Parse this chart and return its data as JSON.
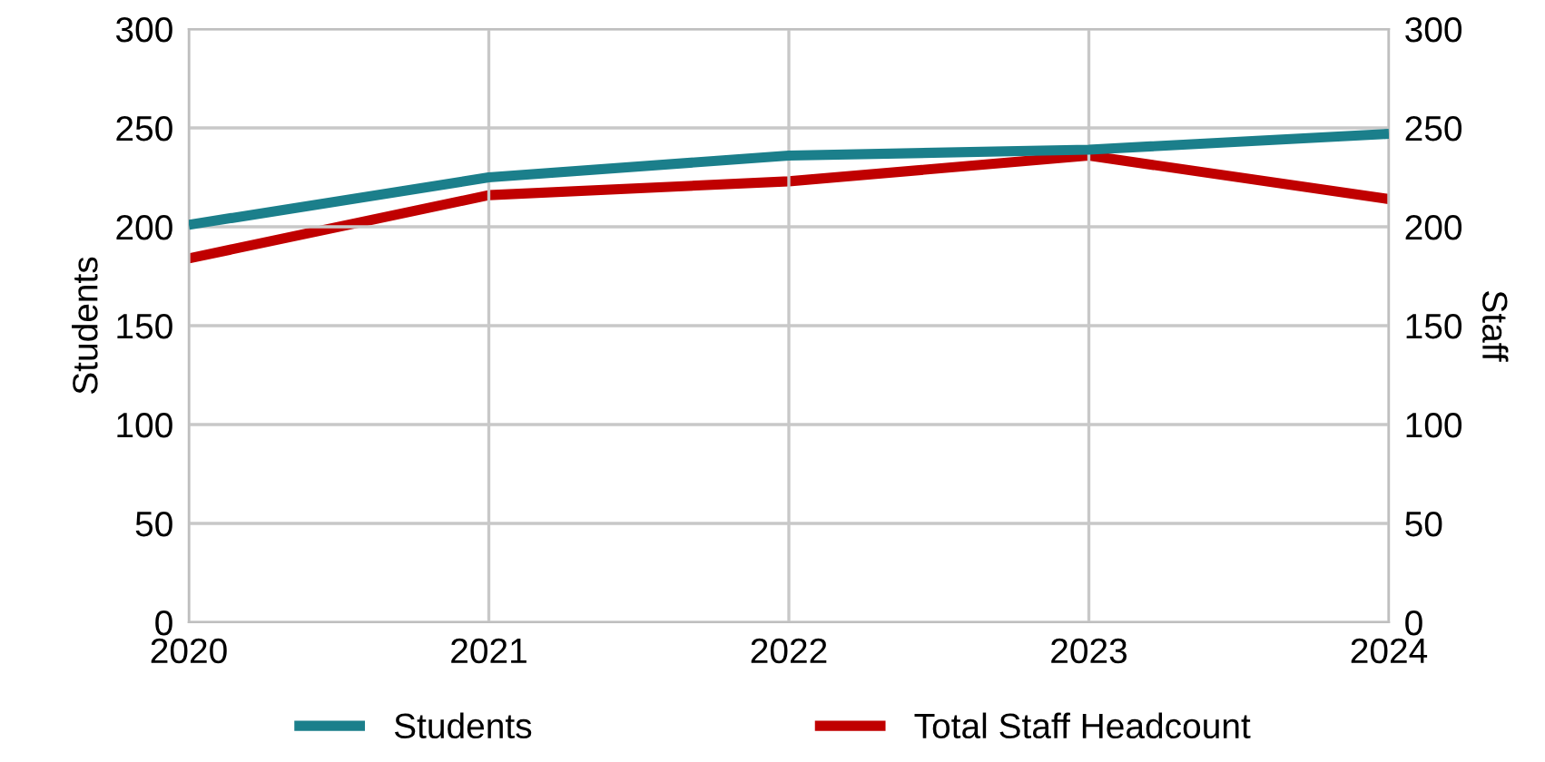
{
  "chart_data": {
    "type": "line",
    "ylabel": "Students",
    "y2label": "Staff",
    "x": [
      2020,
      2021,
      2022,
      2023,
      2024
    ],
    "xlim": [
      2020,
      2024
    ],
    "xticks": [
      2020,
      2021,
      2022,
      2023,
      2024
    ],
    "ylim": [
      0,
      300
    ],
    "yticks": [
      0,
      50,
      100,
      150,
      200,
      250,
      300
    ],
    "y2lim": [
      0,
      300
    ],
    "y2ticks": [
      0,
      50,
      100,
      150,
      200,
      250,
      300
    ],
    "series": [
      {
        "name": "Students",
        "color": "#1b7f8b",
        "values": [
          201,
          225,
          236,
          239,
          247
        ]
      },
      {
        "name": "Total Staff Headcount",
        "color": "#c00000",
        "axis": "y2",
        "values": [
          184,
          216,
          223,
          236,
          214
        ]
      }
    ],
    "grid": true,
    "legend": "bottom",
    "marker": "none",
    "line_style": "solid"
  }
}
